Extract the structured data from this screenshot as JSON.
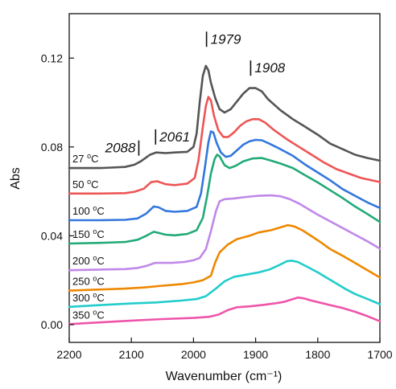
{
  "chart_data": {
    "type": "line",
    "xlabel": "Wavenumber (cm⁻¹)",
    "ylabel": "Abs",
    "xlim": [
      2200,
      1700
    ],
    "ylim": [
      -0.008,
      0.14
    ],
    "x_reversed": true,
    "xticks": [
      2200,
      2100,
      2000,
      1900,
      1800,
      1700
    ],
    "yticks": [
      0.0,
      0.04,
      0.08,
      0.12
    ],
    "ytick_labels": [
      "0.00",
      "0.04",
      "0.08",
      "0.12"
    ],
    "grid": false,
    "series": [
      {
        "name": "27 °C",
        "label_main": "27 ",
        "label_sup": "o",
        "label_unit": "C",
        "color": "#555555",
        "points": [
          [
            2200,
            0.0705
          ],
          [
            2150,
            0.0705
          ],
          [
            2110,
            0.071
          ],
          [
            2095,
            0.072
          ],
          [
            2085,
            0.0735
          ],
          [
            2070,
            0.0765
          ],
          [
            2060,
            0.0775
          ],
          [
            2045,
            0.0772
          ],
          [
            2030,
            0.0775
          ],
          [
            2010,
            0.0778
          ],
          [
            2000,
            0.08
          ],
          [
            1995,
            0.086
          ],
          [
            1990,
            0.1
          ],
          [
            1985,
            0.112
          ],
          [
            1980,
            0.1165
          ],
          [
            1976,
            0.1145
          ],
          [
            1972,
            0.109
          ],
          [
            1965,
            0.102
          ],
          [
            1958,
            0.097
          ],
          [
            1950,
            0.0955
          ],
          [
            1940,
            0.097
          ],
          [
            1930,
            0.1005
          ],
          [
            1920,
            0.104
          ],
          [
            1910,
            0.1065
          ],
          [
            1900,
            0.1065
          ],
          [
            1890,
            0.105
          ],
          [
            1880,
            0.1015
          ],
          [
            1860,
            0.0965
          ],
          [
            1840,
            0.0925
          ],
          [
            1820,
            0.089
          ],
          [
            1800,
            0.0855
          ],
          [
            1780,
            0.0815
          ],
          [
            1760,
            0.079
          ],
          [
            1740,
            0.0765
          ],
          [
            1720,
            0.075
          ],
          [
            1700,
            0.0738
          ]
        ]
      },
      {
        "name": "50 °C",
        "label_main": "50 ",
        "label_sup": "o",
        "label_unit": "C",
        "color": "#ee5555",
        "points": [
          [
            2200,
            0.059
          ],
          [
            2150,
            0.059
          ],
          [
            2110,
            0.0592
          ],
          [
            2095,
            0.0598
          ],
          [
            2080,
            0.0612
          ],
          [
            2068,
            0.0642
          ],
          [
            2058,
            0.0645
          ],
          [
            2045,
            0.0632
          ],
          [
            2030,
            0.0628
          ],
          [
            2010,
            0.0635
          ],
          [
            1998,
            0.066
          ],
          [
            1992,
            0.074
          ],
          [
            1985,
            0.089
          ],
          [
            1980,
            0.0985
          ],
          [
            1976,
            0.1025
          ],
          [
            1972,
            0.101
          ],
          [
            1967,
            0.094
          ],
          [
            1960,
            0.0875
          ],
          [
            1952,
            0.0845
          ],
          [
            1944,
            0.0845
          ],
          [
            1935,
            0.0865
          ],
          [
            1925,
            0.0895
          ],
          [
            1915,
            0.0915
          ],
          [
            1905,
            0.0925
          ],
          [
            1895,
            0.0925
          ],
          [
            1885,
            0.091
          ],
          [
            1870,
            0.0875
          ],
          [
            1850,
            0.0835
          ],
          [
            1830,
            0.08
          ],
          [
            1810,
            0.0765
          ],
          [
            1790,
            0.073
          ],
          [
            1770,
            0.07
          ],
          [
            1750,
            0.068
          ],
          [
            1730,
            0.066
          ],
          [
            1700,
            0.0642
          ]
        ]
      },
      {
        "name": "100 °C",
        "label_main": "100 ",
        "label_sup": "o",
        "label_unit": "C",
        "color": "#3377dd",
        "points": [
          [
            2200,
            0.047
          ],
          [
            2150,
            0.047
          ],
          [
            2110,
            0.0472
          ],
          [
            2090,
            0.0478
          ],
          [
            2076,
            0.05
          ],
          [
            2064,
            0.0532
          ],
          [
            2056,
            0.0528
          ],
          [
            2045,
            0.0512
          ],
          [
            2030,
            0.0508
          ],
          [
            2010,
            0.0512
          ],
          [
            1995,
            0.053
          ],
          [
            1988,
            0.059
          ],
          [
            1982,
            0.07
          ],
          [
            1976,
            0.082
          ],
          [
            1972,
            0.087
          ],
          [
            1968,
            0.0865
          ],
          [
            1963,
            0.082
          ],
          [
            1956,
            0.0775
          ],
          [
            1948,
            0.0755
          ],
          [
            1940,
            0.076
          ],
          [
            1930,
            0.0785
          ],
          [
            1920,
            0.081
          ],
          [
            1910,
            0.0825
          ],
          [
            1900,
            0.0832
          ],
          [
            1890,
            0.083
          ],
          [
            1878,
            0.0815
          ],
          [
            1860,
            0.079
          ],
          [
            1840,
            0.076
          ],
          [
            1820,
            0.072
          ],
          [
            1800,
            0.0685
          ],
          [
            1780,
            0.065
          ],
          [
            1760,
            0.061
          ],
          [
            1740,
            0.058
          ],
          [
            1720,
            0.055
          ],
          [
            1700,
            0.0525
          ]
        ]
      },
      {
        "name": "150 °C",
        "label_main": "150 ",
        "label_sup": "o",
        "label_unit": "C",
        "color": "#22aa77",
        "points": [
          [
            2200,
            0.0365
          ],
          [
            2150,
            0.0368
          ],
          [
            2110,
            0.0372
          ],
          [
            2090,
            0.0382
          ],
          [
            2076,
            0.04
          ],
          [
            2064,
            0.0418
          ],
          [
            2055,
            0.0412
          ],
          [
            2045,
            0.0405
          ],
          [
            2030,
            0.0402
          ],
          [
            2010,
            0.0408
          ],
          [
            1995,
            0.0425
          ],
          [
            1985,
            0.048
          ],
          [
            1978,
            0.058
          ],
          [
            1972,
            0.068
          ],
          [
            1966,
            0.0745
          ],
          [
            1962,
            0.0765
          ],
          [
            1958,
            0.0758
          ],
          [
            1950,
            0.0718
          ],
          [
            1942,
            0.0705
          ],
          [
            1932,
            0.0715
          ],
          [
            1920,
            0.0735
          ],
          [
            1905,
            0.0748
          ],
          [
            1890,
            0.075
          ],
          [
            1875,
            0.0738
          ],
          [
            1860,
            0.0725
          ],
          [
            1840,
            0.0705
          ],
          [
            1820,
            0.0672
          ],
          [
            1800,
            0.064
          ],
          [
            1780,
            0.0605
          ],
          [
            1760,
            0.057
          ],
          [
            1740,
            0.0532
          ],
          [
            1720,
            0.0498
          ],
          [
            1700,
            0.0462
          ]
        ]
      },
      {
        "name": "200 °C",
        "label_main": "200 ",
        "label_sup": "o",
        "label_unit": "C",
        "color": "#c088e8",
        "points": [
          [
            2200,
            0.0245
          ],
          [
            2150,
            0.0248
          ],
          [
            2110,
            0.025
          ],
          [
            2090,
            0.0255
          ],
          [
            2075,
            0.0265
          ],
          [
            2062,
            0.0278
          ],
          [
            2050,
            0.0278
          ],
          [
            2035,
            0.0278
          ],
          [
            2015,
            0.0282
          ],
          [
            2000,
            0.029
          ],
          [
            1990,
            0.03
          ],
          [
            1980,
            0.034
          ],
          [
            1972,
            0.042
          ],
          [
            1964,
            0.051
          ],
          [
            1958,
            0.0555
          ],
          [
            1950,
            0.0565
          ],
          [
            1935,
            0.0568
          ],
          [
            1915,
            0.0575
          ],
          [
            1895,
            0.058
          ],
          [
            1875,
            0.0582
          ],
          [
            1860,
            0.0578
          ],
          [
            1845,
            0.0565
          ],
          [
            1830,
            0.0545
          ],
          [
            1815,
            0.052
          ],
          [
            1800,
            0.0495
          ],
          [
            1780,
            0.0465
          ],
          [
            1760,
            0.0435
          ],
          [
            1740,
            0.0405
          ],
          [
            1720,
            0.0375
          ],
          [
            1700,
            0.0342
          ]
        ]
      },
      {
        "name": "250 °C",
        "label_main": "250 ",
        "label_sup": "o",
        "label_unit": "C",
        "color": "#ee8800",
        "points": [
          [
            2200,
            0.0153
          ],
          [
            2150,
            0.0158
          ],
          [
            2110,
            0.0162
          ],
          [
            2080,
            0.0167
          ],
          [
            2050,
            0.0175
          ],
          [
            2020,
            0.0182
          ],
          [
            2000,
            0.019
          ],
          [
            1985,
            0.02
          ],
          [
            1972,
            0.022
          ],
          [
            1965,
            0.028
          ],
          [
            1958,
            0.0325
          ],
          [
            1945,
            0.036
          ],
          [
            1930,
            0.0385
          ],
          [
            1910,
            0.04
          ],
          [
            1895,
            0.0415
          ],
          [
            1875,
            0.0425
          ],
          [
            1860,
            0.0438
          ],
          [
            1848,
            0.0448
          ],
          [
            1838,
            0.0442
          ],
          [
            1825,
            0.0425
          ],
          [
            1810,
            0.0398
          ],
          [
            1795,
            0.037
          ],
          [
            1780,
            0.034
          ],
          [
            1760,
            0.031
          ],
          [
            1740,
            0.0278
          ],
          [
            1720,
            0.0245
          ],
          [
            1700,
            0.0212
          ]
        ]
      },
      {
        "name": "300 °C",
        "label_main": "300 ",
        "label_sup": "o",
        "label_unit": "C",
        "color": "#22cccc",
        "points": [
          [
            2200,
            0.008
          ],
          [
            2150,
            0.0088
          ],
          [
            2100,
            0.0095
          ],
          [
            2060,
            0.01
          ],
          [
            2020,
            0.0108
          ],
          [
            1995,
            0.0115
          ],
          [
            1980,
            0.0128
          ],
          [
            1965,
            0.016
          ],
          [
            1950,
            0.0195
          ],
          [
            1935,
            0.0215
          ],
          [
            1915,
            0.0225
          ],
          [
            1895,
            0.0235
          ],
          [
            1878,
            0.0248
          ],
          [
            1862,
            0.0268
          ],
          [
            1850,
            0.0285
          ],
          [
            1842,
            0.0288
          ],
          [
            1832,
            0.0282
          ],
          [
            1818,
            0.0262
          ],
          [
            1800,
            0.0235
          ],
          [
            1785,
            0.021
          ],
          [
            1770,
            0.0185
          ],
          [
            1755,
            0.016
          ],
          [
            1740,
            0.0138
          ],
          [
            1720,
            0.0115
          ],
          [
            1700,
            0.0092
          ]
        ]
      },
      {
        "name": "350 °C",
        "label_main": "350 ",
        "label_sup": "o",
        "label_unit": "C",
        "color": "#ee55aa",
        "points": [
          [
            2200,
            0.0002
          ],
          [
            2150,
            0.001
          ],
          [
            2100,
            0.0018
          ],
          [
            2050,
            0.0025
          ],
          [
            2000,
            0.003
          ],
          [
            1975,
            0.0035
          ],
          [
            1960,
            0.0045
          ],
          [
            1945,
            0.0065
          ],
          [
            1930,
            0.0078
          ],
          [
            1910,
            0.0082
          ],
          [
            1890,
            0.0088
          ],
          [
            1870,
            0.0095
          ],
          [
            1855,
            0.0102
          ],
          [
            1840,
            0.0115
          ],
          [
            1832,
            0.0122
          ],
          [
            1822,
            0.0118
          ],
          [
            1810,
            0.0108
          ],
          [
            1795,
            0.0098
          ],
          [
            1780,
            0.0088
          ],
          [
            1760,
            0.0075
          ],
          [
            1740,
            0.0058
          ],
          [
            1720,
            0.0038
          ],
          [
            1700,
            0.0015
          ]
        ]
      }
    ],
    "peak_annotations": [
      {
        "text": "2088",
        "x": 2088,
        "y": 0.0775,
        "bar_after_text": true
      },
      {
        "text": "2061",
        "x": 2061,
        "y": 0.0825,
        "bar_after_text": false
      },
      {
        "text": "1979",
        "x": 1979,
        "y": 0.1265,
        "bar_after_text": false
      },
      {
        "text": "1908",
        "x": 1908,
        "y": 0.1135,
        "bar_after_text": false
      }
    ]
  }
}
